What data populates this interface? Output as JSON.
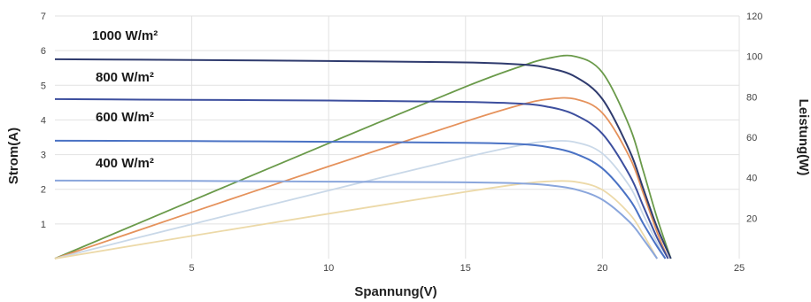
{
  "chart_data": {
    "type": "line",
    "xlabel": "Spannung(V)",
    "ylabel_left": "Strom(A)",
    "ylabel_right": "Leistung(W)",
    "xlim": [
      0,
      25
    ],
    "ylim_left": [
      0,
      7
    ],
    "ylim_right": [
      0,
      120
    ],
    "x_ticks": [
      "5",
      "10",
      "15",
      "20",
      "25"
    ],
    "y_left_ticks": [
      "1",
      "2",
      "3",
      "4",
      "5",
      "6",
      "7"
    ],
    "y_right_ticks": [
      "20",
      "40",
      "60",
      "80",
      "100",
      "120"
    ],
    "grid": true,
    "irradiance_labels": [
      "1000 W/m²",
      "800 W/m²",
      "600 W/m²",
      "400 W/m²"
    ],
    "series": [
      {
        "name": "1000 W/m²",
        "kind": "current",
        "axis": "left",
        "color": "#2f3b6e",
        "x": [
          0,
          5,
          10,
          15,
          17,
          18,
          19,
          20,
          21,
          21.5,
          22,
          22.5
        ],
        "y": [
          5.75,
          5.73,
          5.7,
          5.66,
          5.6,
          5.5,
          5.25,
          4.6,
          3.1,
          2.0,
          0.9,
          0
        ]
      },
      {
        "name": "800 W/m²",
        "kind": "current",
        "axis": "left",
        "color": "#3d4f9e",
        "x": [
          0,
          5,
          10,
          15,
          17,
          18,
          19,
          20,
          21,
          21.5,
          22,
          22.4
        ],
        "y": [
          4.6,
          4.58,
          4.56,
          4.52,
          4.47,
          4.38,
          4.15,
          3.6,
          2.4,
          1.5,
          0.6,
          0
        ]
      },
      {
        "name": "600 W/m²",
        "kind": "current",
        "axis": "left",
        "color": "#4a72c4",
        "x": [
          0,
          5,
          10,
          15,
          17,
          18,
          19,
          20,
          21,
          21.5,
          22,
          22.3
        ],
        "y": [
          3.4,
          3.39,
          3.37,
          3.34,
          3.3,
          3.22,
          3.03,
          2.6,
          1.7,
          1.0,
          0.35,
          0
        ]
      },
      {
        "name": "400 W/m²",
        "kind": "current",
        "axis": "left",
        "color": "#8aa6dc",
        "x": [
          0,
          5,
          10,
          15,
          17,
          18,
          19,
          20,
          21,
          21.5,
          22
        ],
        "y": [
          2.25,
          2.24,
          2.22,
          2.2,
          2.17,
          2.12,
          2.0,
          1.7,
          1.05,
          0.55,
          0
        ]
      },
      {
        "name": "1000 W/m²",
        "kind": "power",
        "axis": "right",
        "color": "#6a9a4a",
        "x": [
          0,
          5,
          10,
          15,
          17,
          18,
          19,
          20,
          21,
          21.5,
          22,
          22.5
        ],
        "y": [
          0,
          28.6,
          57,
          85,
          95,
          99,
          100,
          92,
          65,
          43,
          20,
          0
        ]
      },
      {
        "name": "800 W/m²",
        "kind": "power",
        "axis": "right",
        "color": "#e5925c",
        "x": [
          0,
          5,
          10,
          15,
          17,
          18,
          19,
          20,
          21,
          21.5,
          22,
          22.4
        ],
        "y": [
          0,
          22.9,
          45.6,
          67.8,
          76,
          78.8,
          78.9,
          72,
          50,
          32,
          13,
          0
        ]
      },
      {
        "name": "600 W/m²",
        "kind": "power",
        "axis": "right",
        "color": "#c9d8e8",
        "x": [
          0,
          5,
          10,
          15,
          17,
          18,
          19,
          20,
          21,
          21.5,
          22,
          22.3
        ],
        "y": [
          0,
          17,
          33.7,
          50.1,
          56,
          58,
          57.6,
          52,
          35.7,
          21.5,
          7.7,
          0
        ]
      },
      {
        "name": "400 W/m²",
        "kind": "power",
        "axis": "right",
        "color": "#ecd9a8",
        "x": [
          0,
          5,
          10,
          15,
          17,
          18,
          19,
          20,
          21,
          21.5,
          22
        ],
        "y": [
          0,
          11.2,
          22.2,
          33,
          36.9,
          38.2,
          38,
          34,
          22,
          11.8,
          0
        ]
      }
    ]
  }
}
